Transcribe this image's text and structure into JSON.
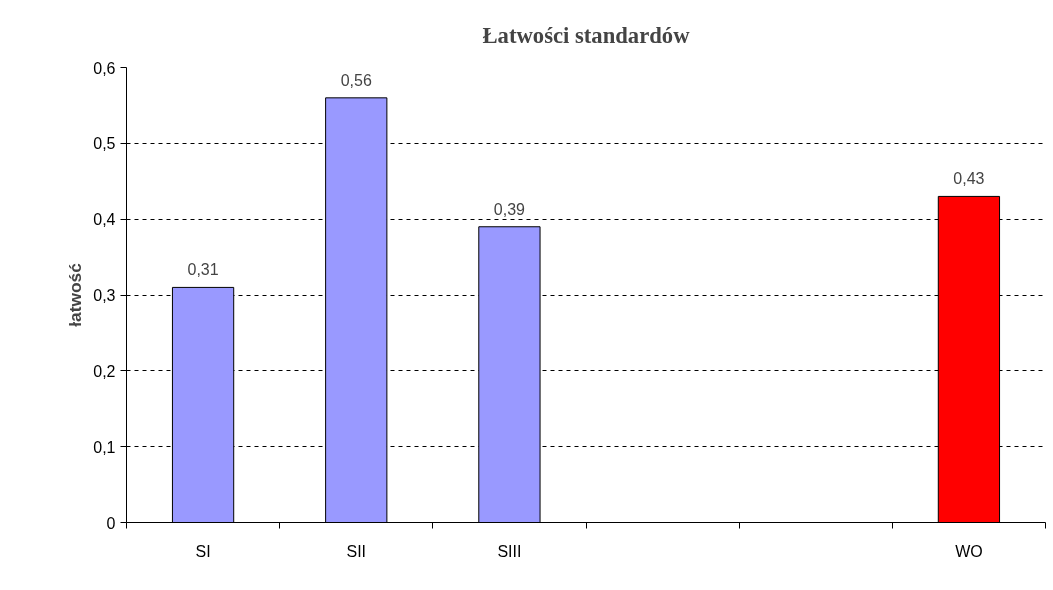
{
  "chart_data": {
    "type": "bar",
    "title": "Łatwości standardów",
    "ylabel": "łatwość",
    "categories": [
      "SI",
      "SII",
      "SIII",
      null,
      null,
      "WO"
    ],
    "values": [
      0.31,
      0.56,
      0.39,
      null,
      null,
      0.43
    ],
    "colors": [
      "#9999ff",
      "#9999ff",
      "#9999ff",
      "#9999ff",
      "#9999ff",
      "#ff0000"
    ],
    "value_labels": [
      "0,31",
      "0,56",
      "0,39",
      null,
      null,
      "0,43"
    ],
    "ylim": [
      0,
      0.6
    ],
    "yticks": [
      {
        "value": 0,
        "label": "0"
      },
      {
        "value": 0.1,
        "label": "0,1"
      },
      {
        "value": 0.2,
        "label": "0,2"
      },
      {
        "value": 0.3,
        "label": "0,3"
      },
      {
        "value": 0.4,
        "label": "0,4"
      },
      {
        "value": 0.5,
        "label": "0,5"
      },
      {
        "value": 0.6,
        "label": "0,6"
      }
    ],
    "grid": "y"
  }
}
